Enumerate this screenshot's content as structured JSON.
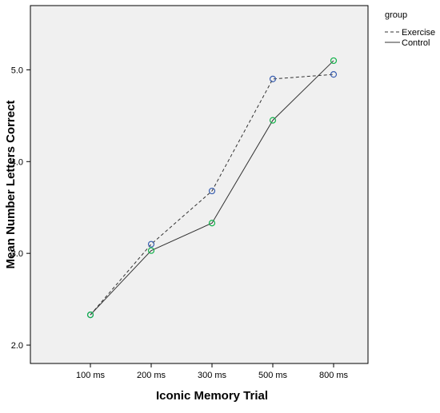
{
  "chart_data": {
    "type": "line",
    "title": "",
    "xlabel": "Iconic Memory Trial",
    "ylabel": "Mean Number Letters Correct",
    "categories": [
      "100 ms",
      "200 ms",
      "300 ms",
      "500 ms",
      "800 ms"
    ],
    "ylim": [
      1.8,
      5.7
    ],
    "yticks": [
      "2.0",
      "3.0",
      "4.0",
      "5.0"
    ],
    "grid": false,
    "legend": {
      "title": "group",
      "position": "right"
    },
    "series": [
      {
        "name": "Exercise",
        "values": [
          2.33,
          3.1,
          3.68,
          4.9,
          4.95
        ],
        "line_style": "dashed",
        "marker_color": "#3a5fb0"
      },
      {
        "name": "Control",
        "values": [
          2.33,
          3.03,
          3.33,
          4.45,
          5.1
        ],
        "line_style": "solid",
        "marker_color": "#12b24a"
      }
    ],
    "colors": {
      "plot_background": "#f0f0f0",
      "line": "#333333"
    }
  }
}
